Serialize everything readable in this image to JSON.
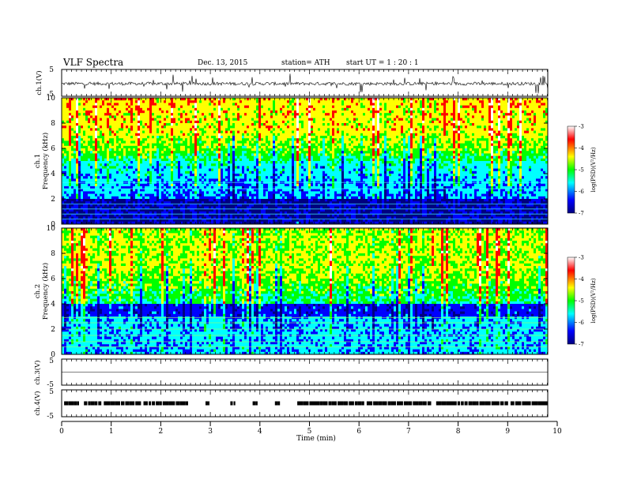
{
  "header": {
    "title": "VLF  Spectra",
    "date": "Dec. 13,  2015",
    "station": "station= ATH",
    "start": "start  UT  =   1  : 20 : 1"
  },
  "colors": {
    "colormap": [
      "#000080",
      "#0000ff",
      "#00ffff",
      "#00ff00",
      "#ffff00",
      "#ff0000",
      "#ffffff"
    ],
    "trace": "#000000",
    "axis": "#000000"
  },
  "chart_data": [
    {
      "type": "line",
      "name": "ch1-waveform",
      "ylabel": "ch.1(V)",
      "ylim": [
        -5,
        5
      ],
      "yticks": [
        "5",
        "-5"
      ],
      "x": [
        0,
        1,
        2,
        3,
        4,
        5,
        6,
        7,
        8,
        9,
        9.8
      ],
      "values": [
        -0.2,
        -0.3,
        -0.1,
        -0.2,
        -0.3,
        -0.2,
        -0.1,
        -0.2,
        -0.3,
        -0.2,
        -0.2
      ],
      "description_of_shape": "noisy signal near 0 V with spikes up to about +/-4 V"
    },
    {
      "type": "heatmap",
      "name": "ch1-spectrogram",
      "ylabel": "ch.1\nFrequency (kHz)",
      "ylabel_lines": [
        "ch.1",
        "Frequency (kHz)"
      ],
      "ylim": [
        0,
        10
      ],
      "yticks": [
        "0",
        "2",
        "4",
        "6",
        "8",
        "10"
      ],
      "xlim": [
        0,
        9.8
      ],
      "colorbar": {
        "label": "log(PSD)(V²/Hz)",
        "range": [
          -7,
          -3
        ],
        "ticks": [
          "-3",
          "-4",
          "-5",
          "-6",
          "-7"
        ]
      },
      "approx_levels": [
        {
          "freq_khz": "0-2",
          "log_psd": -6.8
        },
        {
          "freq_khz": "2-5",
          "log_psd": -6.0
        },
        {
          "freq_khz": "5-7",
          "log_psd": -5.0
        },
        {
          "freq_khz": "7-10",
          "log_psd": -4.3
        }
      ]
    },
    {
      "type": "heatmap",
      "name": "ch2-spectrogram",
      "ylabel_lines": [
        "ch.2",
        "Frequency (kHz)"
      ],
      "ylim": [
        0,
        10
      ],
      "yticks": [
        "0",
        "2",
        "4",
        "6",
        "8",
        "10"
      ],
      "xlim": [
        0,
        9.8
      ],
      "colorbar": {
        "label": "log(PSD)(V²/Hz)",
        "range": [
          -7,
          -3
        ],
        "ticks": [
          "-3",
          "-4",
          "-5",
          "-6",
          "-7"
        ]
      },
      "approx_levels": [
        {
          "freq_khz": "0-3",
          "log_psd": -6.0
        },
        {
          "freq_khz": "3-4",
          "log_psd": -6.5
        },
        {
          "freq_khz": "4-7",
          "log_psd": -5.0
        },
        {
          "freq_khz": "7-10",
          "log_psd": -4.5
        }
      ]
    },
    {
      "type": "line",
      "name": "ch3-waveform",
      "ylabel": "ch.3(V)",
      "ylim": [
        -5,
        5
      ],
      "yticks": [
        "5",
        "-5"
      ],
      "x": [
        0,
        9.8
      ],
      "values": [
        0,
        0
      ]
    },
    {
      "type": "scatter",
      "name": "ch4-waveform",
      "ylabel": "ch.4(V)",
      "ylim": [
        -5,
        5
      ],
      "yticks": [
        "5",
        "-5"
      ],
      "value_level": 0,
      "segments_min": [
        [
          0.05,
          0.35
        ],
        [
          0.45,
          0.8
        ],
        [
          0.85,
          1.6
        ],
        [
          1.65,
          2.55
        ],
        [
          2.9,
          2.98
        ],
        [
          3.4,
          3.5
        ],
        [
          3.85,
          3.95
        ],
        [
          4.3,
          4.4
        ],
        [
          4.75,
          6.1
        ],
        [
          6.15,
          7.45
        ],
        [
          7.55,
          9.0
        ],
        [
          9.05,
          9.8
        ]
      ]
    }
  ],
  "xaxis": {
    "label": "Time  (min)",
    "ticks": [
      "0",
      "1",
      "2",
      "3",
      "4",
      "5",
      "6",
      "7",
      "8",
      "9",
      "10"
    ],
    "range": [
      0,
      10
    ]
  }
}
